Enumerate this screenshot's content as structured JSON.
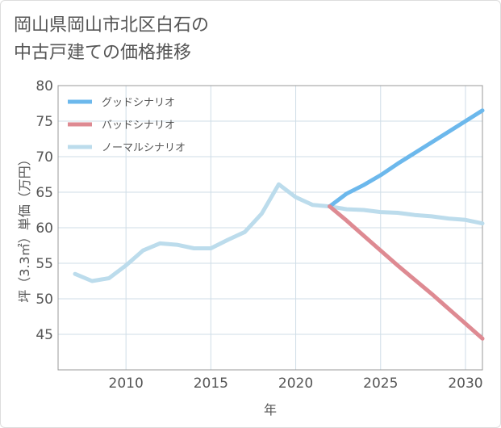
{
  "title_lines": [
    "岡山県岡山市北区白石の",
    "中古戸建ての価格推移"
  ],
  "chart_data": {
    "type": "line",
    "xlabel": "年",
    "ylabel": "坪（3.3㎡）単価（万円）",
    "xlim": [
      2006,
      2031
    ],
    "ylim": [
      40,
      80
    ],
    "xticks": [
      2010,
      2015,
      2020,
      2025,
      2030
    ],
    "yticks": [
      45,
      50,
      55,
      60,
      65,
      70,
      75,
      80
    ],
    "grid": true,
    "legend_position": "top-left",
    "series": [
      {
        "name": "グッドシナリオ",
        "color": "#6cb8ec",
        "x": [
          2022,
          2023,
          2024,
          2025,
          2026,
          2027,
          2028,
          2029,
          2030,
          2031
        ],
        "y": [
          63.0,
          64.8,
          66.0,
          67.4,
          69.0,
          70.5,
          72.0,
          73.5,
          75.0,
          76.5
        ]
      },
      {
        "name": "バッドシナリオ",
        "color": "#de8a92",
        "x": [
          2022,
          2023,
          2024,
          2025,
          2026,
          2027,
          2028,
          2029,
          2030,
          2031
        ],
        "y": [
          63.0,
          61.0,
          58.9,
          56.8,
          54.7,
          52.7,
          50.7,
          48.6,
          46.5,
          44.4
        ]
      },
      {
        "name": "ノーマルシナリオ",
        "color": "#bcdcec",
        "x": [
          2007,
          2008,
          2009,
          2010,
          2011,
          2012,
          2013,
          2014,
          2015,
          2016,
          2017,
          2018,
          2019,
          2020,
          2021,
          2022,
          2023,
          2024,
          2025,
          2026,
          2027,
          2028,
          2029,
          2030,
          2031
        ],
        "y": [
          53.5,
          52.5,
          52.9,
          54.7,
          56.8,
          57.8,
          57.6,
          57.1,
          57.1,
          58.3,
          59.4,
          62.0,
          66.1,
          64.3,
          63.2,
          63.0,
          62.6,
          62.5,
          62.2,
          62.1,
          61.8,
          61.6,
          61.3,
          61.1,
          60.6
        ]
      }
    ]
  }
}
